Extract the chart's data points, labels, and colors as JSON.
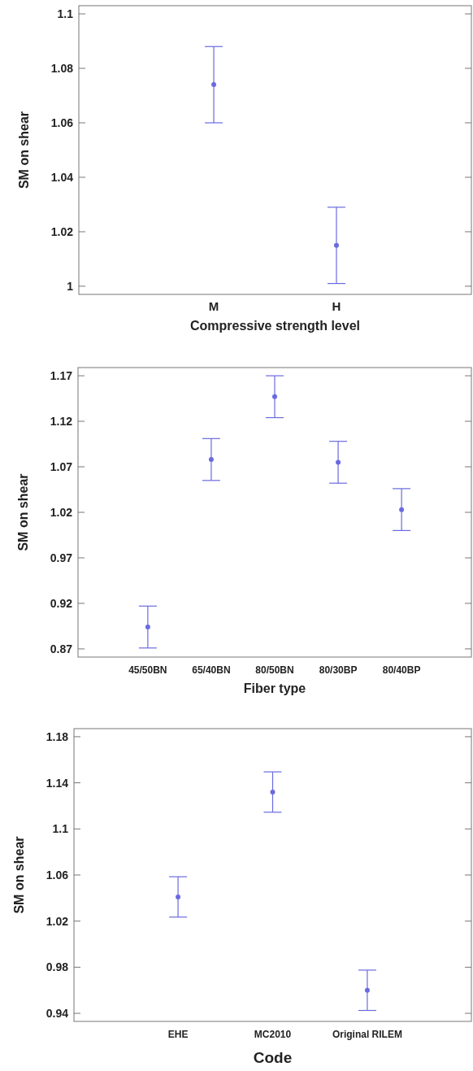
{
  "chart_data": [
    {
      "type": "scatter",
      "xlabel": "Compressive strength level",
      "ylabel": "SM on shear",
      "categories": [
        "M",
        "H"
      ],
      "values": [
        1.074,
        1.015
      ],
      "errors": [
        0.014,
        0.014
      ],
      "color": "#6a6ae0",
      "marker": "circle",
      "ylim": [
        0.997,
        1.103
      ],
      "yticks": [
        1,
        1.02,
        1.04,
        1.06,
        1.08,
        1.1
      ]
    },
    {
      "type": "scatter",
      "xlabel": "Fiber type",
      "ylabel": "SM on shear",
      "categories": [
        "45/50BN",
        "65/40BN",
        "80/50BN",
        "80/30BP",
        "80/40BP"
      ],
      "values": [
        0.894,
        1.078,
        1.147,
        1.075,
        1.023
      ],
      "errors": [
        0.023,
        0.023,
        0.023,
        0.023,
        0.023
      ],
      "color": "#6a6ae0",
      "marker": "circle",
      "ylim": [
        0.861,
        1.179
      ],
      "yticks": [
        0.87,
        0.92,
        0.97,
        1.02,
        1.07,
        1.12,
        1.17
      ]
    },
    {
      "type": "scatter",
      "xlabel": "Code",
      "ylabel": "SM on shear",
      "categories": [
        "EHE",
        "MC2010",
        "Original RILEM"
      ],
      "values": [
        1.041,
        1.132,
        0.96
      ],
      "errors": [
        0.0175,
        0.0175,
        0.0175
      ],
      "color": "#6a6ae0",
      "marker": "circle",
      "ylim": [
        0.933,
        1.187
      ],
      "yticks": [
        0.94,
        0.98,
        1.02,
        1.06,
        1.1,
        1.14,
        1.18
      ]
    }
  ]
}
